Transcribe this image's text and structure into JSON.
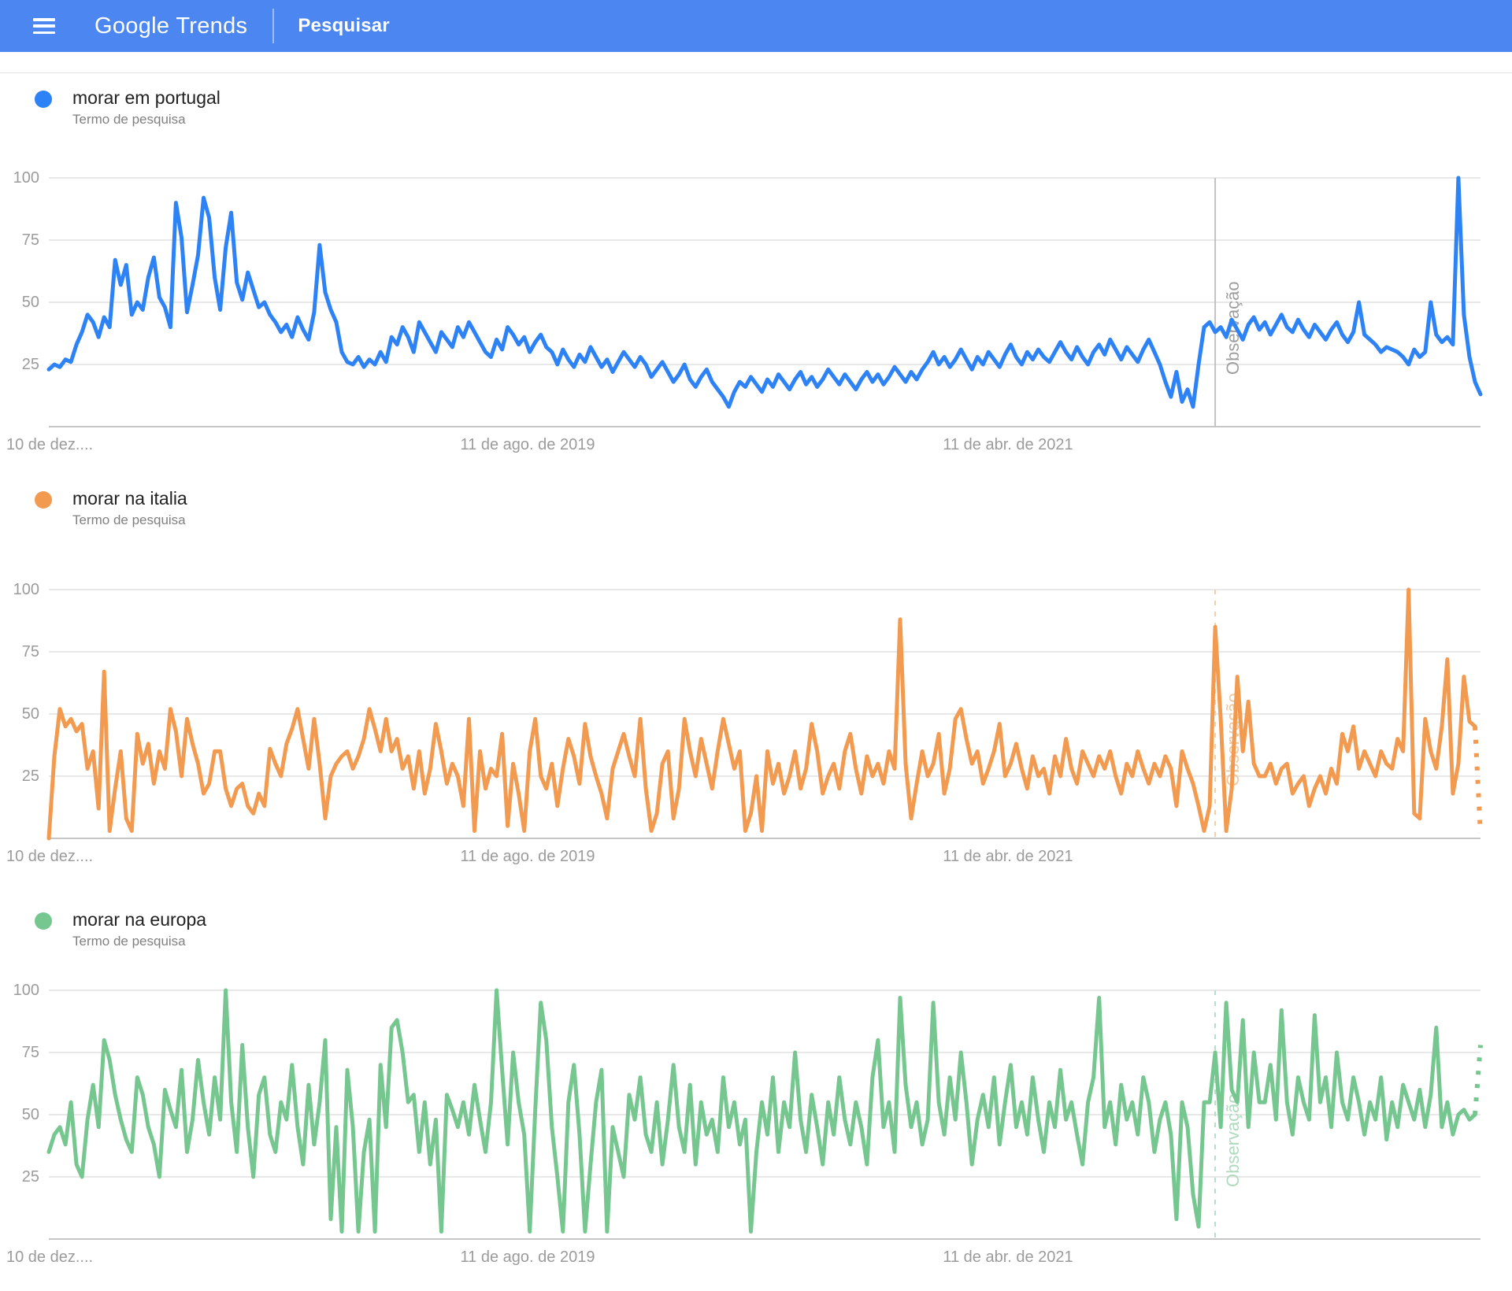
{
  "header": {
    "logo_part1": "Google",
    "logo_part2": "Trends",
    "nav_label": "Pesquisar"
  },
  "colors": {
    "appbar_blue": "#4c86f0",
    "gridline": "#e8e8e8",
    "axis_baseline": "#c6c6c6",
    "axis_text": "#9b9b9b"
  },
  "axis": {
    "y_ticks": [
      "100",
      "75",
      "50",
      "25"
    ],
    "x_ticks": [
      "10 de dez....",
      "11 de ago. de 2019",
      "11 de abr. de 2021"
    ]
  },
  "note_label": "Observação",
  "chart_data": [
    {
      "type": "line",
      "title": "morar em portugal",
      "subtitle": "Termo de pesquisa",
      "color": "#2d83f6",
      "ylim": [
        0,
        100
      ],
      "x_tick_labels": [
        "10 de dez....",
        "11 de ago. de 2019",
        "11 de abr. de 2021"
      ],
      "y_tick_labels": [
        100,
        75,
        50,
        25
      ],
      "note_index": 211,
      "note_line_color": "#c2c2c2",
      "note_text_color": "#9e9e9e",
      "note_line_dash": null,
      "dashed_tail_from": null,
      "values": [
        23,
        25,
        24,
        27,
        26,
        33,
        38,
        45,
        42,
        36,
        44,
        40,
        67,
        57,
        65,
        45,
        50,
        47,
        60,
        68,
        52,
        48,
        40,
        90,
        76,
        46,
        57,
        69,
        92,
        84,
        60,
        47,
        72,
        86,
        58,
        51,
        62,
        55,
        48,
        50,
        45,
        42,
        38,
        41,
        36,
        44,
        39,
        35,
        46,
        73,
        54,
        47,
        42,
        30,
        26,
        25,
        28,
        24,
        27,
        25,
        30,
        26,
        36,
        33,
        40,
        36,
        30,
        42,
        38,
        34,
        30,
        38,
        35,
        32,
        40,
        36,
        42,
        38,
        34,
        30,
        28,
        35,
        31,
        40,
        37,
        33,
        36,
        30,
        34,
        37,
        32,
        30,
        25,
        31,
        27,
        24,
        29,
        26,
        32,
        28,
        24,
        27,
        22,
        26,
        30,
        27,
        24,
        28,
        25,
        20,
        23,
        26,
        22,
        18,
        21,
        25,
        19,
        16,
        20,
        23,
        18,
        15,
        12,
        8,
        14,
        18,
        16,
        20,
        17,
        14,
        19,
        16,
        21,
        18,
        15,
        19,
        22,
        17,
        20,
        16,
        19,
        23,
        20,
        17,
        21,
        18,
        15,
        19,
        22,
        18,
        21,
        17,
        20,
        24,
        21,
        18,
        22,
        19,
        23,
        26,
        30,
        25,
        28,
        24,
        27,
        31,
        27,
        23,
        28,
        25,
        30,
        27,
        24,
        29,
        33,
        28,
        25,
        30,
        27,
        31,
        28,
        26,
        30,
        34,
        30,
        27,
        32,
        28,
        25,
        30,
        33,
        29,
        35,
        31,
        27,
        32,
        29,
        26,
        31,
        35,
        30,
        25,
        18,
        12,
        22,
        10,
        15,
        8,
        25,
        40,
        42,
        38,
        40,
        36,
        43,
        39,
        35,
        41,
        44,
        39,
        42,
        37,
        41,
        45,
        40,
        38,
        43,
        39,
        36,
        41,
        38,
        35,
        39,
        42,
        37,
        34,
        38,
        50,
        37,
        35,
        33,
        30,
        32,
        31,
        30,
        28,
        25,
        31,
        28,
        30,
        50,
        37,
        34,
        36,
        33,
        100,
        45,
        28,
        18,
        13
      ]
    },
    {
      "type": "line",
      "title": "morar na italia",
      "subtitle": "Termo de pesquisa",
      "color": "#f19a50",
      "ylim": [
        0,
        100
      ],
      "x_tick_labels": [
        "10 de dez....",
        "11 de ago. de 2019",
        "11 de abr. de 2021"
      ],
      "y_tick_labels": [
        100,
        75,
        50,
        25
      ],
      "note_index": 211,
      "note_line_color": "#f4cda5",
      "note_text_color": "#efc79f",
      "note_line_dash": "6 8",
      "dashed_tail_from": 258,
      "values": [
        0,
        33,
        52,
        45,
        48,
        43,
        46,
        28,
        35,
        12,
        67,
        3,
        20,
        35,
        8,
        3,
        42,
        30,
        38,
        22,
        35,
        28,
        52,
        43,
        25,
        48,
        38,
        30,
        18,
        22,
        35,
        35,
        20,
        13,
        20,
        22,
        13,
        10,
        18,
        13,
        36,
        30,
        25,
        38,
        44,
        52,
        40,
        28,
        48,
        30,
        8,
        25,
        30,
        33,
        35,
        28,
        33,
        40,
        52,
        44,
        35,
        48,
        35,
        40,
        28,
        33,
        20,
        35,
        18,
        28,
        46,
        35,
        22,
        30,
        25,
        13,
        48,
        3,
        35,
        20,
        28,
        25,
        42,
        5,
        30,
        18,
        3,
        35,
        48,
        25,
        20,
        30,
        13,
        28,
        40,
        33,
        22,
        46,
        33,
        25,
        18,
        8,
        28,
        35,
        42,
        33,
        25,
        48,
        20,
        3,
        10,
        30,
        35,
        8,
        20,
        48,
        35,
        25,
        40,
        30,
        20,
        35,
        48,
        38,
        28,
        35,
        3,
        10,
        25,
        3,
        35,
        22,
        30,
        18,
        25,
        35,
        20,
        28,
        46,
        35,
        18,
        25,
        30,
        20,
        35,
        42,
        28,
        18,
        33,
        25,
        30,
        22,
        35,
        28,
        88,
        30,
        8,
        22,
        35,
        25,
        30,
        42,
        18,
        28,
        48,
        52,
        40,
        30,
        35,
        22,
        28,
        35,
        46,
        25,
        30,
        38,
        28,
        20,
        33,
        25,
        28,
        18,
        33,
        25,
        40,
        28,
        22,
        35,
        30,
        25,
        33,
        28,
        35,
        25,
        18,
        30,
        25,
        35,
        28,
        22,
        30,
        25,
        33,
        28,
        13,
        35,
        28,
        22,
        13,
        3,
        13,
        85,
        48,
        3,
        20,
        65,
        35,
        55,
        30,
        25,
        25,
        30,
        22,
        28,
        30,
        18,
        22,
        25,
        13,
        20,
        25,
        18,
        28,
        22,
        42,
        35,
        45,
        28,
        35,
        30,
        25,
        35,
        30,
        28,
        40,
        35,
        100,
        10,
        8,
        48,
        35,
        28,
        45,
        72,
        18,
        30,
        65,
        47,
        45,
        2
      ]
    },
    {
      "type": "line",
      "title": "morar na europa",
      "subtitle": "Termo de pesquisa",
      "color": "#76c690",
      "ylim": [
        0,
        100
      ],
      "x_tick_labels": [
        "10 de dez....",
        "11 de ago. de 2019",
        "11 de abr. de 2021"
      ],
      "y_tick_labels": [
        100,
        75,
        50,
        25
      ],
      "note_index": 211,
      "note_line_color": "#b5dfc3",
      "note_text_color": "#aedabd",
      "note_line_dash": "6 8",
      "dashed_tail_from": 258,
      "values": [
        35,
        42,
        45,
        38,
        55,
        30,
        25,
        48,
        62,
        45,
        80,
        72,
        58,
        48,
        40,
        35,
        65,
        58,
        45,
        38,
        25,
        60,
        52,
        45,
        68,
        35,
        48,
        72,
        55,
        42,
        65,
        48,
        100,
        55,
        35,
        78,
        45,
        25,
        58,
        65,
        42,
        35,
        55,
        48,
        70,
        45,
        30,
        62,
        38,
        55,
        80,
        8,
        45,
        3,
        68,
        45,
        3,
        35,
        48,
        3,
        70,
        45,
        85,
        88,
        75,
        55,
        58,
        35,
        55,
        30,
        48,
        3,
        58,
        52,
        45,
        55,
        42,
        62,
        48,
        35,
        55,
        100,
        68,
        38,
        75,
        55,
        42,
        3,
        52,
        95,
        80,
        45,
        25,
        3,
        55,
        70,
        42,
        3,
        30,
        55,
        68,
        3,
        45,
        35,
        25,
        58,
        48,
        65,
        42,
        35,
        55,
        30,
        48,
        70,
        45,
        35,
        62,
        30,
        55,
        42,
        48,
        35,
        65,
        45,
        55,
        38,
        48,
        3,
        35,
        55,
        42,
        65,
        35,
        55,
        45,
        75,
        48,
        35,
        58,
        45,
        30,
        55,
        42,
        65,
        48,
        38,
        55,
        45,
        30,
        65,
        80,
        45,
        55,
        35,
        97,
        62,
        45,
        55,
        38,
        48,
        95,
        55,
        42,
        65,
        48,
        75,
        55,
        30,
        48,
        58,
        45,
        65,
        38,
        55,
        70,
        45,
        55,
        42,
        65,
        48,
        35,
        55,
        45,
        68,
        48,
        55,
        42,
        30,
        55,
        65,
        97,
        45,
        55,
        38,
        62,
        48,
        55,
        42,
        65,
        55,
        35,
        48,
        55,
        42,
        8,
        55,
        45,
        18,
        5,
        55,
        55,
        75,
        45,
        95,
        60,
        55,
        88,
        45,
        75,
        55,
        55,
        70,
        48,
        92,
        55,
        42,
        65,
        55,
        48,
        90,
        55,
        65,
        45,
        75,
        55,
        48,
        65,
        55,
        42,
        55,
        48,
        65,
        40,
        55,
        45,
        62,
        55,
        48,
        60,
        45,
        58,
        85,
        45,
        55,
        42,
        50,
        52,
        48,
        50,
        78
      ]
    }
  ]
}
